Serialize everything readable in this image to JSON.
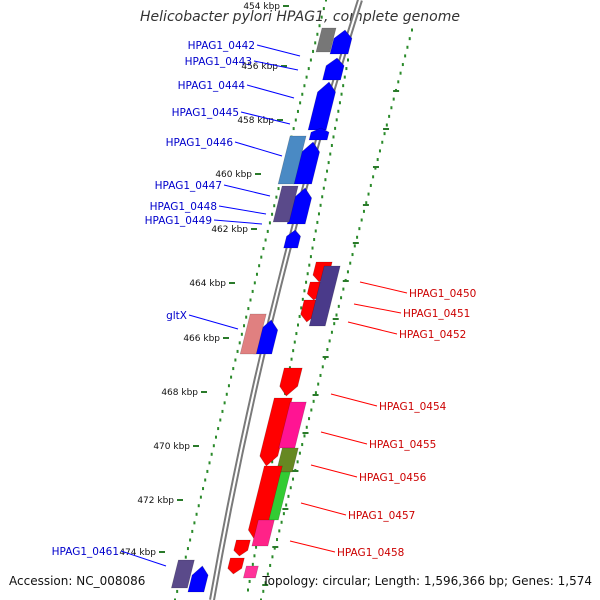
{
  "title": "Helicobacter pylori HPAG1, complete genome",
  "accession": "Accession: NC_008086",
  "summary": "Topology: circular; Length: 1,596,366 bp; Genes: 1,574",
  "colors": {
    "forward_label": "#0000cc",
    "reverse_label": "#cc0000",
    "backbone": "#555555",
    "scale_dots": "#2a8a2a"
  },
  "ticks": [
    "454 kbp",
    "456 kbp",
    "458 kbp",
    "460 kbp",
    "462 kbp",
    "464 kbp",
    "466 kbp",
    "468 kbp",
    "470 kbp",
    "472 kbp",
    "474 kbp"
  ],
  "forward_genes": [
    "HPAG1_0442",
    "HPAG1_0443",
    "HPAG1_0444",
    "HPAG1_0445",
    "HPAG1_0446",
    "HPAG1_0447",
    "HPAG1_0448",
    "HPAG1_0449",
    "gltX",
    "HPAG1_0461"
  ],
  "reverse_genes": [
    "HPAG1_0450",
    "HPAG1_0451",
    "HPAG1_0452",
    "HPAG1_0454",
    "HPAG1_0455",
    "HPAG1_0456",
    "HPAG1_0457",
    "HPAG1_0458"
  ]
}
